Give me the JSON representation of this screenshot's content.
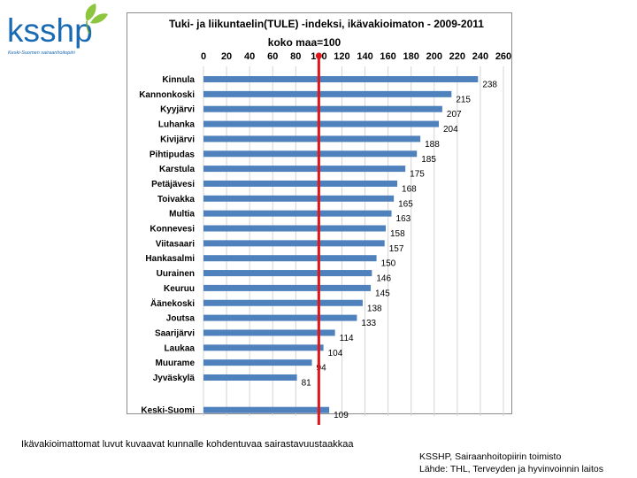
{
  "logo": {
    "text": "ksshp",
    "subtitle": "Keski-Suomen sairaanhoitopiiri"
  },
  "footnote": "Ikävakioimattomat luvut kuvaavat kunnalle kohdentuvaa sairastavuustaakkaa",
  "source": {
    "line1": "KSSHP, Sairaanhoitopiirin toimisto",
    "line2": "Lähde: THL, Terveyden ja hyvinvoinnin laitos"
  },
  "colors": {
    "bar": "#4f81bd",
    "reference_line": "#e0161b",
    "brand_blue": "#1a6ab3",
    "brand_green": "#8cc63f"
  },
  "chart_data": {
    "type": "bar",
    "orientation": "horizontal",
    "title_line1": "Tuki- ja liikuntaelin(TULE) -indeksi, ikävakioimaton - 2009-2011",
    "title_line2": "koko maa=100",
    "xlim": [
      0,
      260
    ],
    "ticks": [
      0,
      20,
      40,
      60,
      80,
      100,
      120,
      140,
      160,
      180,
      200,
      220,
      240,
      260
    ],
    "reference_value": 100,
    "categories": [
      "Kinnula",
      "Kannonkoski",
      "Kyyjärvi",
      "Luhanka",
      "Kivijärvi",
      "Pihtipudas",
      "Karstula",
      "Petäjävesi",
      "Toivakka",
      "Multia",
      "Konnevesi",
      "Viitasaari",
      "Hankasalmi",
      "Uurainen",
      "Keuruu",
      "Äänekoski",
      "Joutsa",
      "Saarijärvi",
      "Laukaa",
      "Muurame",
      "Jyväskylä",
      "Keski-Suomi"
    ],
    "values": [
      238,
      215,
      207,
      204,
      188,
      185,
      175,
      168,
      165,
      163,
      158,
      157,
      150,
      146,
      145,
      138,
      133,
      114,
      104,
      94,
      81,
      109
    ],
    "gridlines": true,
    "legend": "none"
  }
}
